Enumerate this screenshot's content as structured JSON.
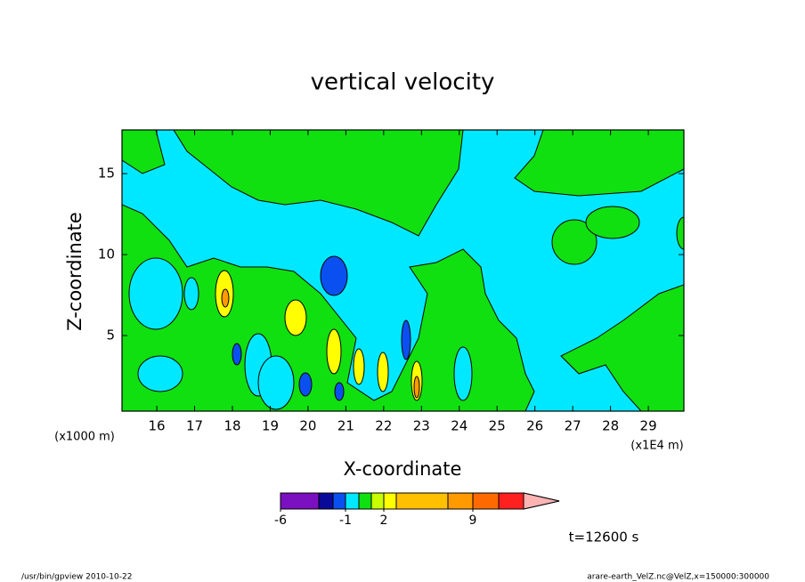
{
  "chart_data": {
    "type": "contour",
    "title": "vertical velocity",
    "x_label": "X-coordinate",
    "y_label": "Z-coordinate",
    "y_unit_label": "(x1000 m)",
    "x_unit_label": "(x1E4 m)",
    "xlim": [
      15.08,
      29.94
    ],
    "xticks": [
      16,
      17,
      18,
      19,
      20,
      21,
      22,
      23,
      24,
      25,
      26,
      27,
      28,
      29
    ],
    "ylim": [
      0.33,
      17.7
    ],
    "yticks": [
      5,
      10,
      15
    ],
    "colorbar": {
      "levels": [
        -6,
        -3,
        -2,
        -1,
        0,
        1,
        2,
        3,
        6,
        9,
        12,
        15
      ],
      "colors": [
        "#7a10c0",
        "#0a0a9a",
        "#0a50f0",
        "#00e8ff",
        "#10e010",
        "#c8ff00",
        "#ffff00",
        "#ffc000",
        "#ff9a00",
        "#ff6a00",
        "#ff2020",
        "#ff7a7a",
        "#ffb4b4"
      ],
      "ticks": [
        -6,
        -1,
        2,
        9
      ]
    },
    "time_label": "t=12600 s",
    "footer_left": "/usr/bin/gpview   2010-10-22",
    "footer_right": "arare-earth_VelZ.nc@VelZ,x=150000:300000"
  }
}
